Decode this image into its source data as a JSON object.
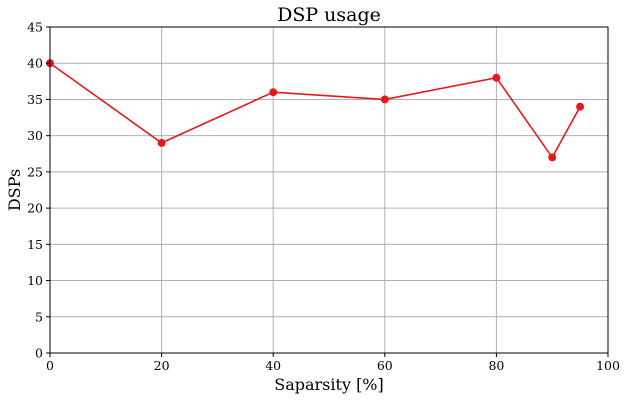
{
  "chart_data": {
    "type": "line",
    "title": "DSP usage",
    "xlabel": "Saparsity [%]",
    "ylabel": "DSPs",
    "xlim": [
      0,
      100
    ],
    "ylim": [
      0,
      45
    ],
    "xticks": [
      0,
      20,
      40,
      60,
      80,
      100
    ],
    "yticks": [
      0,
      5,
      10,
      15,
      20,
      25,
      30,
      35,
      40,
      45
    ],
    "grid": true,
    "series": [
      {
        "color": "#e41a1c",
        "marker": "circle",
        "x": [
          0,
          20,
          40,
          60,
          80,
          90,
          95
        ],
        "y": [
          40,
          29,
          36,
          35,
          38,
          27,
          34
        ]
      }
    ]
  }
}
